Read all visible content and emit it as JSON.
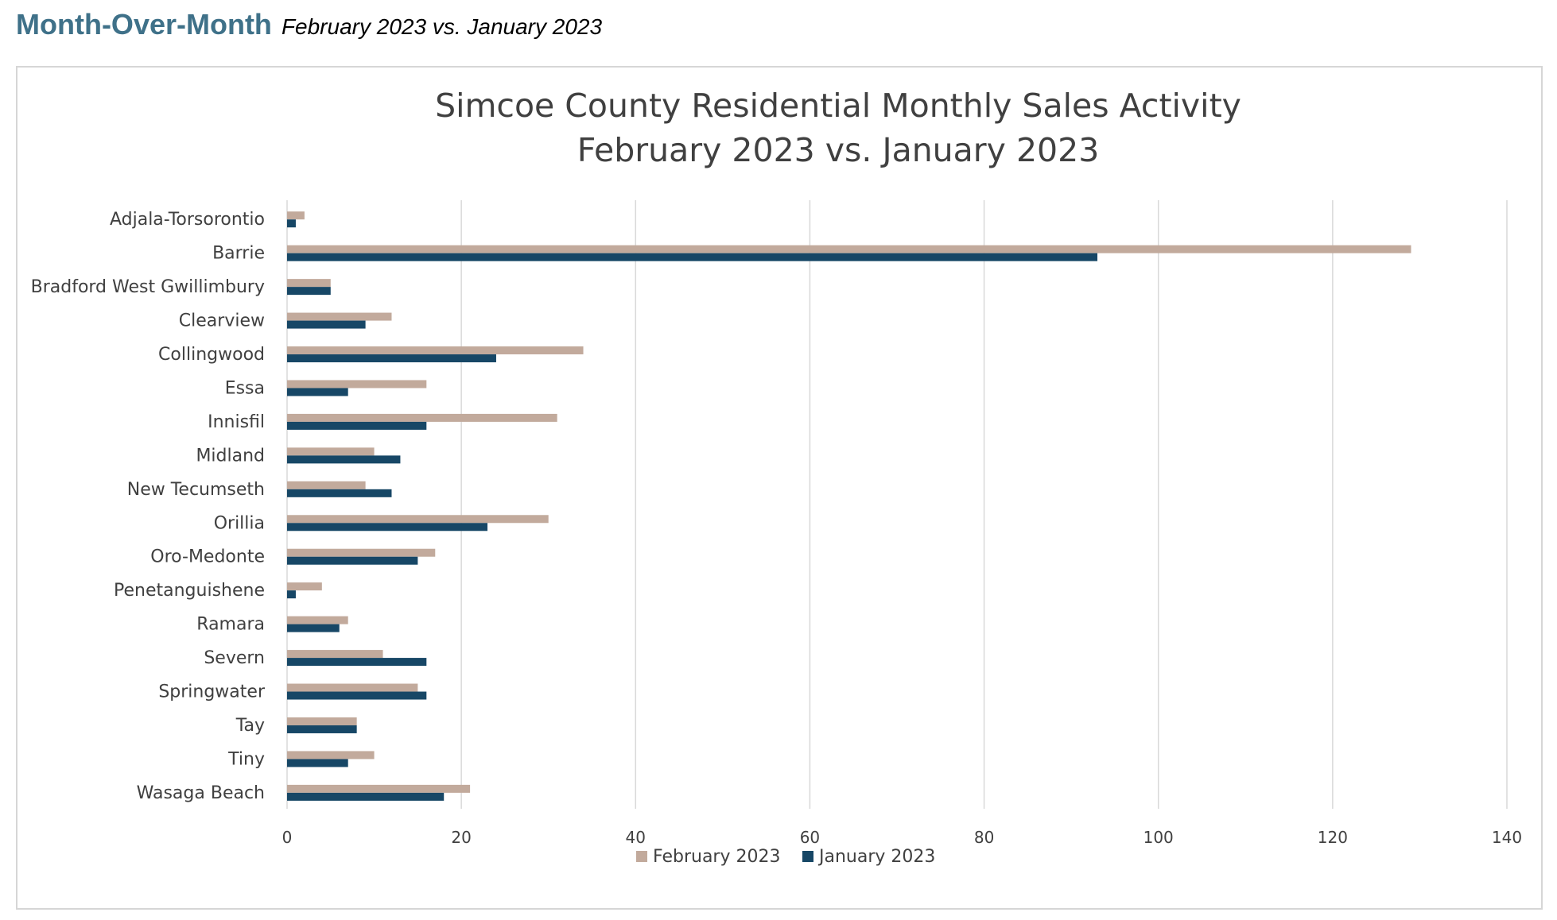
{
  "header": {
    "title": "Month-Over-Month",
    "subtitle": "February 2023 vs. January 2023"
  },
  "colors": {
    "header_accent": "#3f7189",
    "february": "#c2aa9c",
    "january": "#174766",
    "gridline": "#d9d9d9",
    "text": "#404040"
  },
  "chart_data": {
    "type": "bar",
    "orientation": "horizontal",
    "title_line1": "Simcoe County Residential Monthly Sales Activity",
    "title_line2": "February 2023 vs. January 2023",
    "categories": [
      "Adjala-Torsorontio",
      "Barrie",
      "Bradford West Gwillimbury",
      "Clearview",
      "Collingwood",
      "Essa",
      "Innisfil",
      "Midland",
      "New Tecumseth",
      "Orillia",
      "Oro-Medonte",
      "Penetanguishene",
      "Ramara",
      "Severn",
      "Springwater",
      "Tay",
      "Tiny",
      "Wasaga Beach"
    ],
    "series": [
      {
        "name": "February 2023",
        "values": [
          2,
          129,
          5,
          12,
          34,
          16,
          31,
          10,
          9,
          30,
          17,
          4,
          7,
          11,
          15,
          8,
          10,
          21
        ]
      },
      {
        "name": "January 2023",
        "values": [
          1,
          93,
          5,
          9,
          24,
          7,
          16,
          13,
          12,
          23,
          15,
          1,
          6,
          16,
          16,
          8,
          7,
          18
        ]
      }
    ],
    "xlim": [
      0,
      140
    ],
    "xticks": [
      "0",
      "20",
      "40",
      "60",
      "80",
      "100",
      "120",
      "140"
    ],
    "grid": "vertical",
    "legend": "bottom"
  }
}
